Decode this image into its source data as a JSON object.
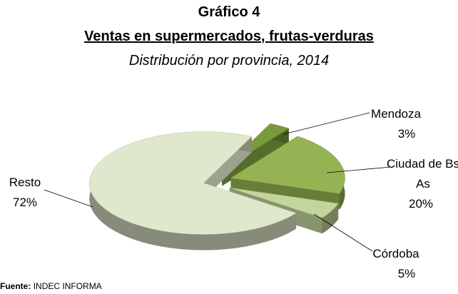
{
  "chart_data": {
    "type": "pie3d",
    "title": "Gráfico 4",
    "subtitle": "Ventas en supermercados, frutas-verduras",
    "caption": "Distribución por provincia, 2014",
    "categories": [
      "Mendoza",
      "Ciudad de Bs As",
      "Córdoba",
      "Resto"
    ],
    "values": [
      3,
      20,
      5,
      72
    ],
    "value_labels": [
      "3%",
      "20%",
      "5%",
      "72%"
    ],
    "colors": [
      "#7a9a3e",
      "#95b352",
      "#c2d59a",
      "#dfe8cc"
    ],
    "source_label": "Fuente:",
    "source": "INDEC INFORMA"
  }
}
